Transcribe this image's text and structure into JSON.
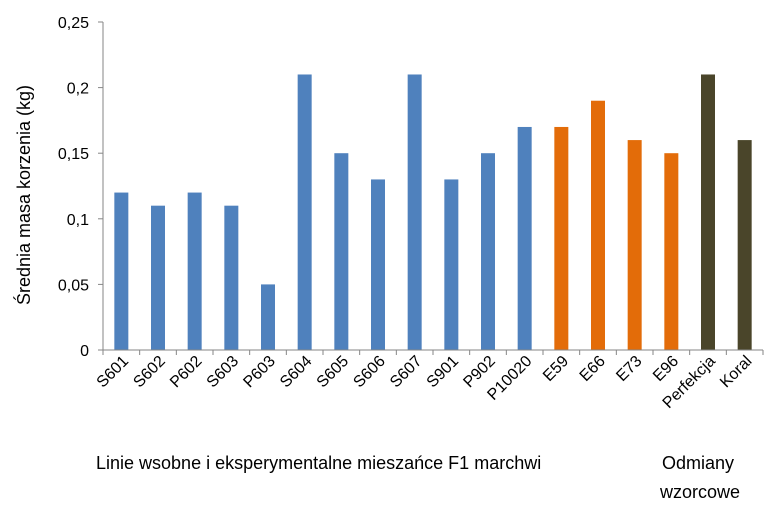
{
  "chart_data": {
    "type": "bar",
    "ylabel": "Średnia masa korzenia  (kg)",
    "ylim": [
      0,
      0.25
    ],
    "yticks": [
      "0",
      "0,05",
      "0,1",
      "0,15",
      "0,2",
      "0,25"
    ],
    "categories": [
      "S601",
      "S602",
      "P602",
      "S603",
      "P603",
      "S604",
      "S605",
      "S606",
      "S607",
      "S901",
      "P902",
      "P10020",
      "E59",
      "E66",
      "E73",
      "E96",
      "Perfekcja",
      "Koral"
    ],
    "values": [
      0.12,
      0.11,
      0.12,
      0.11,
      0.05,
      0.21,
      0.15,
      0.13,
      0.21,
      0.13,
      0.15,
      0.17,
      0.17,
      0.19,
      0.16,
      0.15,
      0.21,
      0.16
    ],
    "bar_colors": [
      "#4f81bd",
      "#4f81bd",
      "#4f81bd",
      "#4f81bd",
      "#4f81bd",
      "#4f81bd",
      "#4f81bd",
      "#4f81bd",
      "#4f81bd",
      "#4f81bd",
      "#4f81bd",
      "#4f81bd",
      "#e36c09",
      "#e36c09",
      "#e36c09",
      "#e36c09",
      "#4a452a",
      "#4a452a"
    ],
    "grid": false,
    "group_labels": {
      "lines": "Linie wsobne i eksperymentalne  mieszańce F1 marchwi",
      "reference_line1": "Odmiany",
      "reference_line2": "wzorcowe"
    }
  }
}
